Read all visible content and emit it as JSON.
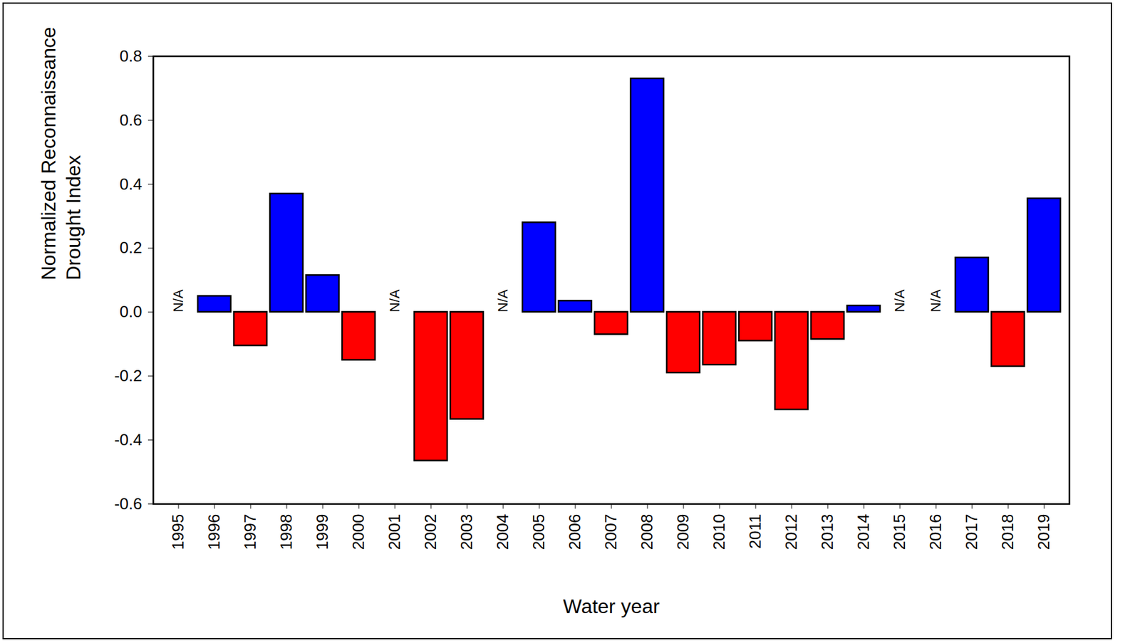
{
  "chart_data": {
    "type": "bar",
    "xlabel": "Water year",
    "ylabel": "Normalized Reconnaissance\nDrought Index",
    "categories": [
      "1995",
      "1996",
      "1997",
      "1998",
      "1999",
      "2000",
      "2001",
      "2002",
      "2003",
      "2004",
      "2005",
      "2006",
      "2007",
      "2008",
      "2009",
      "2010",
      "2011",
      "2012",
      "2013",
      "2014",
      "2015",
      "2016",
      "2017",
      "2018",
      "2019"
    ],
    "values": [
      null,
      0.05,
      -0.105,
      0.37,
      0.115,
      -0.15,
      null,
      -0.465,
      -0.335,
      null,
      0.28,
      0.035,
      -0.07,
      0.73,
      -0.19,
      -0.165,
      -0.09,
      -0.305,
      -0.085,
      0.02,
      null,
      null,
      0.17,
      -0.17,
      0.355
    ],
    "colors": [
      null,
      "#0000ff",
      "#ff0000",
      "#0000ff",
      "#0000ff",
      "#ff0000",
      null,
      "#ff0000",
      "#ff0000",
      null,
      "#0000ff",
      "#0000ff",
      "#ff0000",
      "#0000ff",
      "#ff0000",
      "#ff0000",
      "#ff0000",
      "#ff0000",
      "#ff0000",
      "#0000ff",
      null,
      null,
      "#0000ff",
      "#ff0000",
      "#0000ff"
    ],
    "annotations": [
      {
        "x": "1995",
        "text": "N/A"
      },
      {
        "x": "2001",
        "text": "N/A"
      },
      {
        "x": "2004",
        "text": "N/A"
      },
      {
        "x": "2015",
        "text": "N/A"
      },
      {
        "x": "2016",
        "text": "N/A"
      }
    ],
    "ylim": [
      -0.6,
      0.8
    ],
    "yticks": [
      -0.6,
      -0.4,
      -0.2,
      {
        "value": 0,
        "label": "0.0"
      },
      0.2,
      0.4,
      0.6,
      0.8
    ]
  }
}
